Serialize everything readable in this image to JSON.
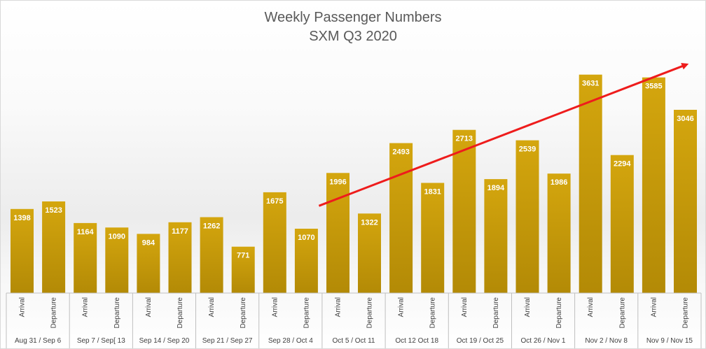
{
  "chart_data": {
    "type": "bar",
    "title": "Weekly Passenger Numbers",
    "subtitle": "SXM Q3 2020",
    "xlabel": "",
    "ylabel": "",
    "ylim": [
      0,
      4000
    ],
    "grid": false,
    "legend": "none",
    "weeks": [
      "Aug 31 / Sep 6",
      "Sep 7 / Sep[ 13",
      "Sep 14 / Sep 20",
      "Sep 21 / Sep 27",
      "Sep 28 / Oct 4",
      "Oct 5 / Oct 11",
      "Oct 12 Oct 18",
      "Oct 19 / Oct 25",
      "Oct 26 / Nov 1",
      "Nov 2 / Nov 8",
      "Nov 9 / Nov 15"
    ],
    "categories": [
      "Arrival",
      "Departure",
      "Arrival",
      "Departure",
      "Arrival",
      "Departure",
      "Arrival",
      "Departure",
      "Arrival",
      "Departure",
      "Arrival",
      "Departure",
      "Arrival",
      "Departure",
      "Arrival",
      "Departure",
      "Arrival",
      "Departure",
      "Arrival",
      "Departure",
      "Arrival",
      "Departure"
    ],
    "values": [
      1398,
      1523,
      1164,
      1090,
      984,
      1177,
      1262,
      771,
      1675,
      1070,
      1996,
      1322,
      2493,
      1831,
      2713,
      1894,
      2539,
      1986,
      3631,
      2294,
      3585,
      3046
    ],
    "annotations": [
      {
        "type": "trend-arrow",
        "from_value": 1450,
        "to_value": 3800,
        "color": "#ee1c1c"
      }
    ],
    "colors": {
      "bar_top": "#d4a60e",
      "bar_bottom": "#b38a06",
      "title": "#595959",
      "label": "#ffffff",
      "axis_text": "#404040",
      "axis_line": "#bfbfbf"
    }
  }
}
